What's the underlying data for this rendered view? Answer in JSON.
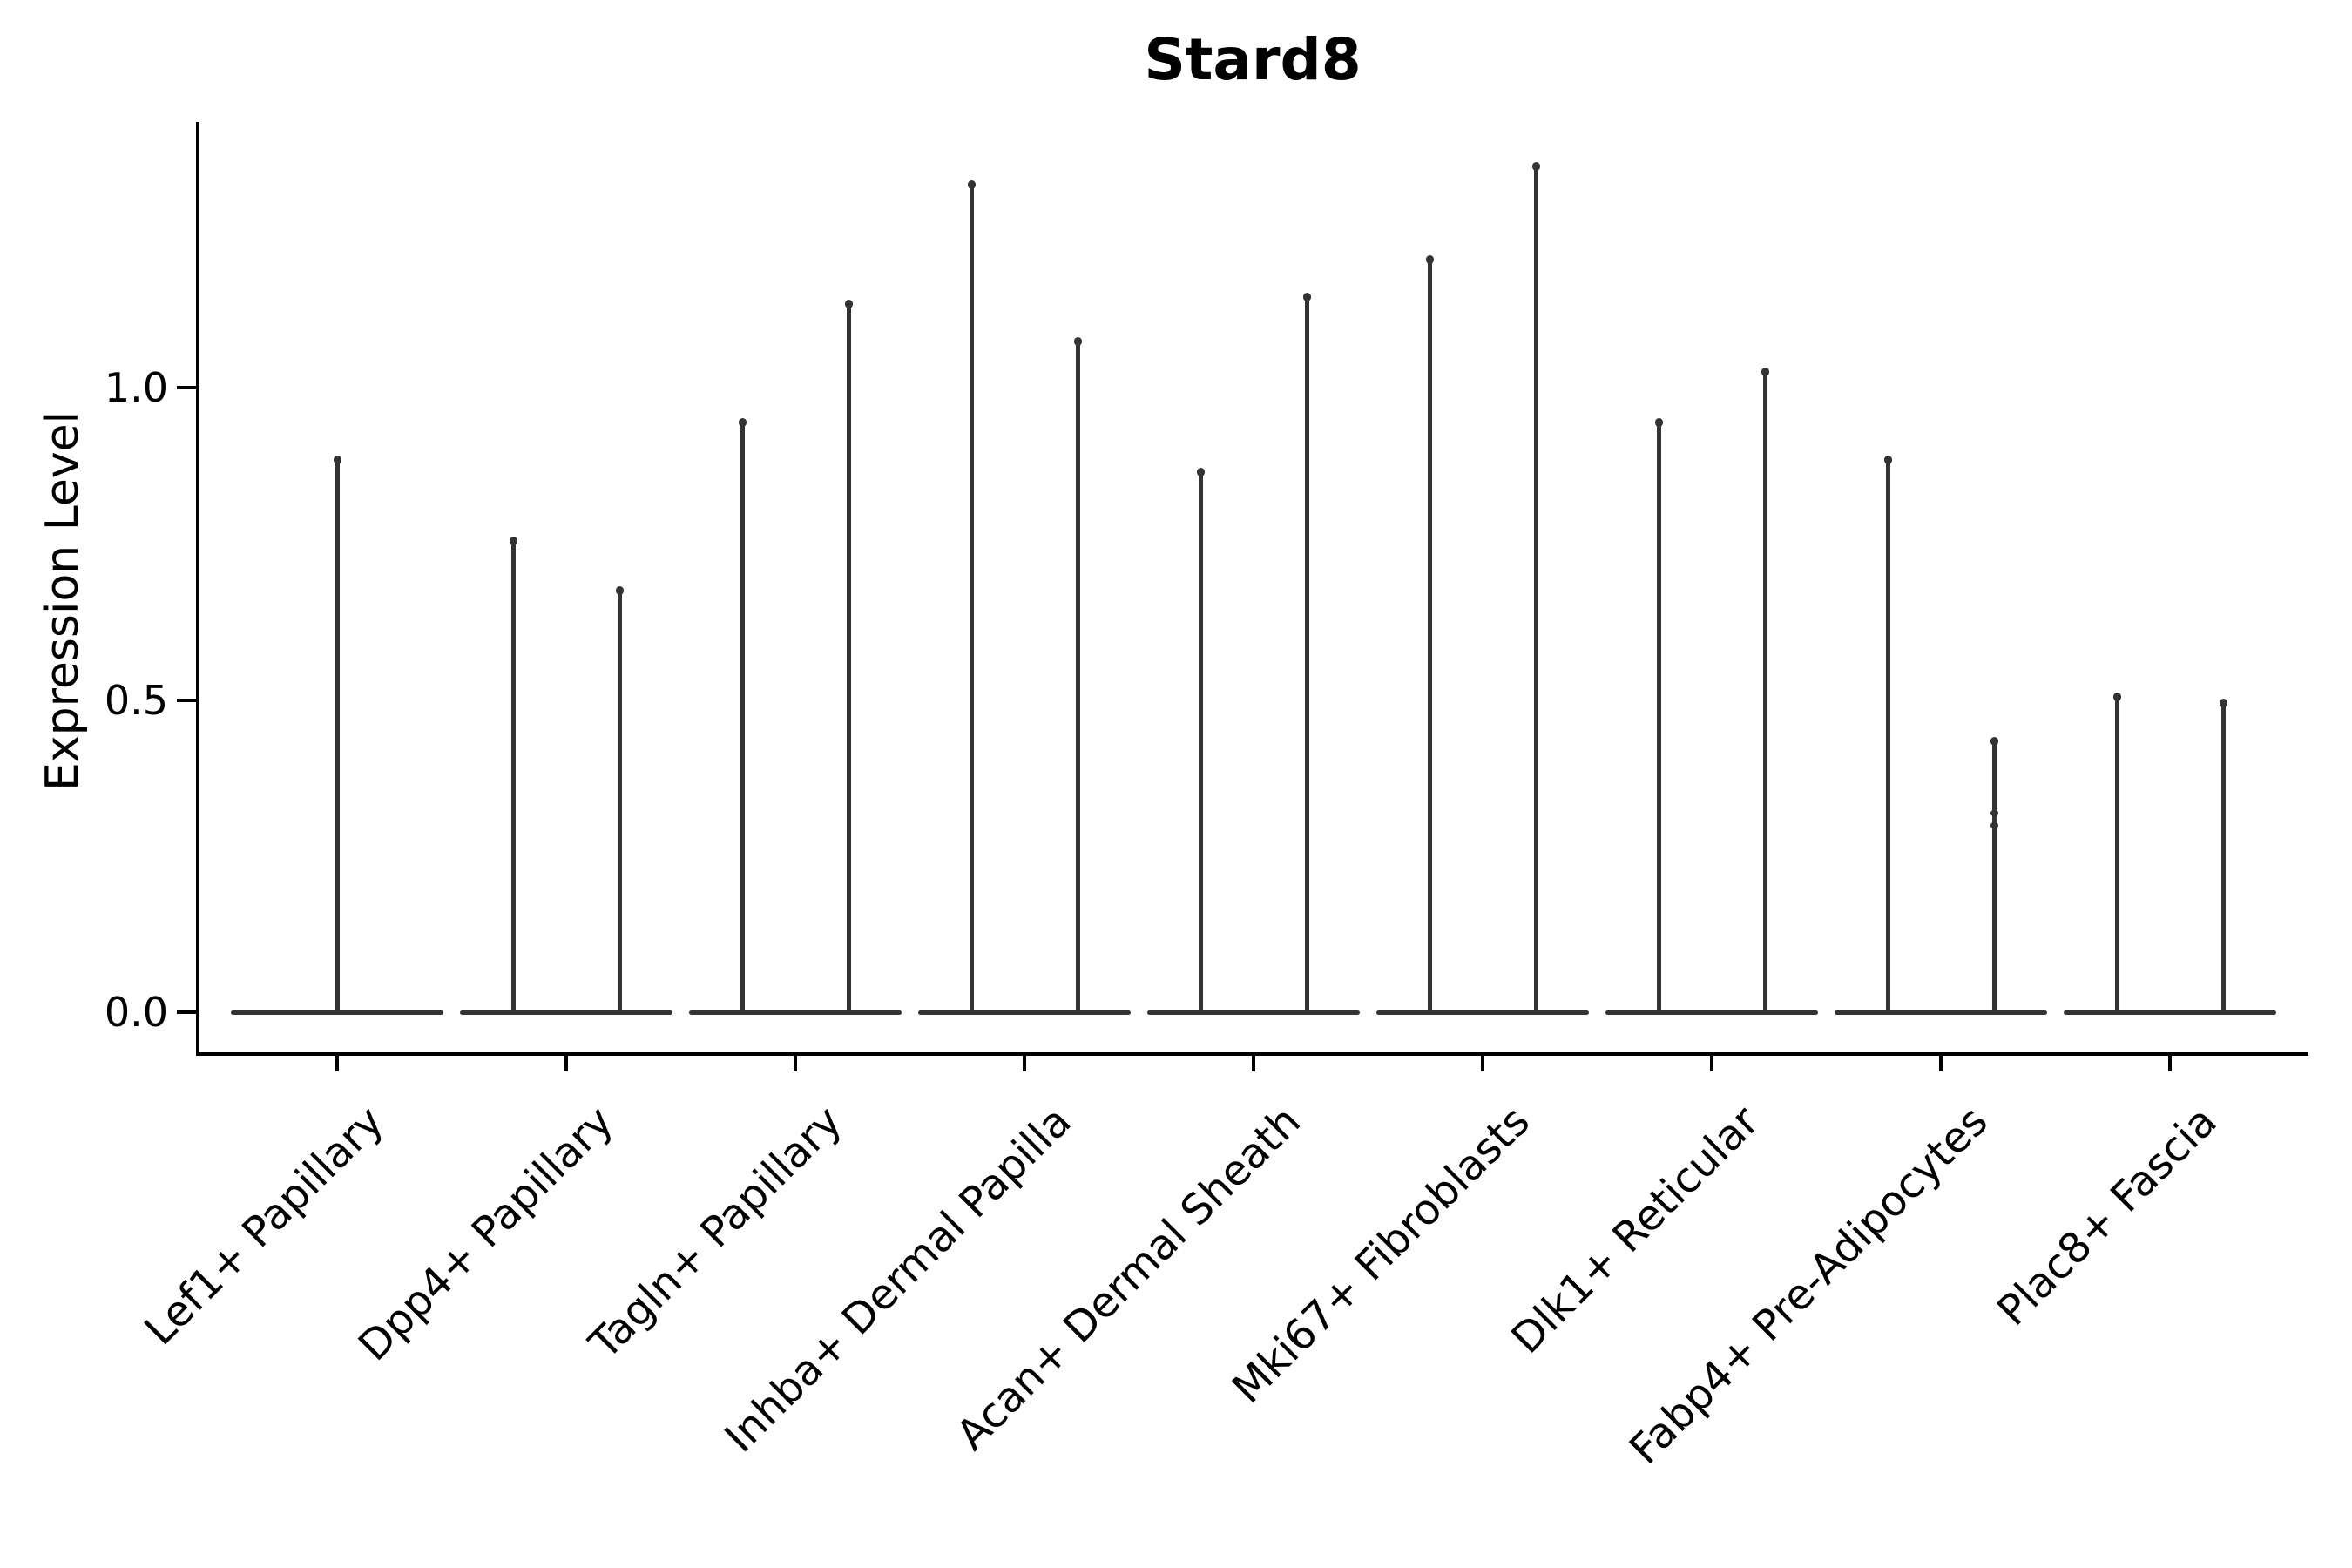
{
  "chart_data": {
    "type": "violin",
    "title": "Stard8",
    "ylabel": "Expression Level",
    "xlabel": "",
    "categories": [
      "Lef1+ Papillary",
      "Dpp4+ Papillary",
      "Tagln+ Papillary",
      "Inhba+ Dermal Papilla",
      "Acan+ Dermal Sheath",
      "Mki67+ Fibroblasts",
      "Dlk1+ Reticular",
      "Fabp4+ Pre-Adipocytes",
      "Plac8+ Fascia"
    ],
    "violin_max_values": [
      [
        0.89
      ],
      [
        0.76,
        0.68
      ],
      [
        0.95,
        1.14
      ],
      [
        1.33,
        1.08
      ],
      [
        0.87,
        1.15
      ],
      [
        1.21,
        1.36
      ],
      [
        0.95,
        1.03
      ],
      [
        0.89,
        0.44
      ],
      [
        0.51,
        0.5
      ]
    ],
    "baseline_value": 0.0,
    "ylim": [
      -0.07,
      1.43
    ],
    "ytick_labels": [
      "0.0",
      "0.5",
      "1.0"
    ],
    "ytick_values": [
      0.0,
      0.5,
      1.0
    ],
    "xtick_rotation_deg": 45,
    "grid": false,
    "legend": null,
    "extra_point_marks": [
      {
        "category": "Fabp4+ Pre-Adipocytes",
        "violin_index": 1,
        "values": [
          0.32,
          0.3
        ]
      }
    ],
    "colors": {
      "violin": "#333333",
      "axis": "#000000",
      "text": "#000000",
      "background": "#ffffff"
    }
  }
}
